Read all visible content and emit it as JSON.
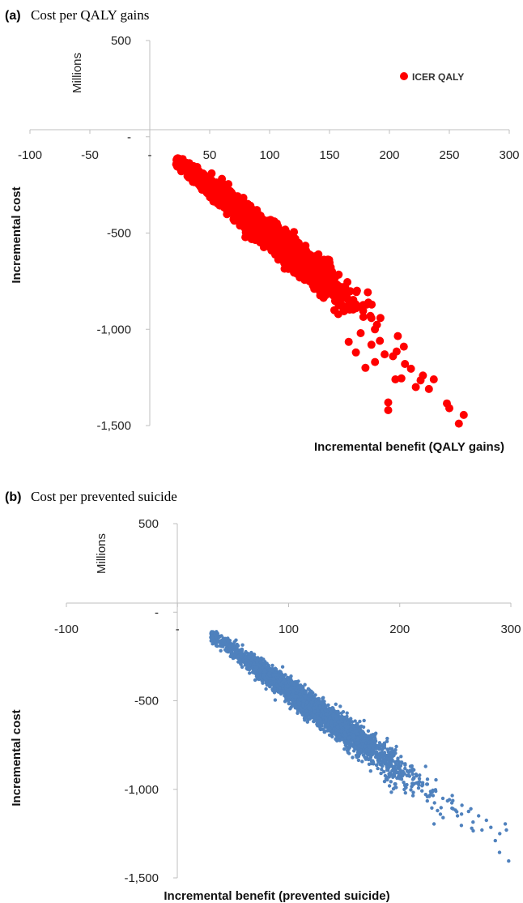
{
  "chart_data": [
    {
      "type": "scatter",
      "panel_letter": "(a)",
      "title": "Cost per QALY gains",
      "xlabel": "Incremental benefit (QALY gains)",
      "ylabel": "Incremental cost",
      "y_unit_label": "Millions",
      "xlim": [
        -100,
        300
      ],
      "ylim": [
        -1500,
        500
      ],
      "x_ticks": [
        -100,
        -50,
        0,
        50,
        100,
        150,
        200,
        250,
        300
      ],
      "x_tick_labels": [
        "-100",
        "-50",
        "-",
        "50",
        "100",
        "150",
        "200",
        "250",
        "300"
      ],
      "y_ticks": [
        500,
        0,
        -500,
        -1000,
        -1500
      ],
      "y_tick_labels": [
        "500",
        "-",
        "-500",
        "-1,000",
        "-1,500"
      ],
      "legend": {
        "label": "ICER QALY",
        "placement": "top-right"
      },
      "grid": false,
      "marker": {
        "shape": "circle",
        "size": "large"
      },
      "series": [
        {
          "name": "ICER QALY",
          "color": "#ff0000",
          "trend": {
            "x_start": 22,
            "y_start": -120,
            "slope": -5.0
          },
          "distribution": {
            "n": 3000,
            "x_mean": 95,
            "x_sd": 30,
            "x_min": 22,
            "x_max": 262,
            "cost_sd": 45
          },
          "outliers": [
            {
              "x": 258,
              "y": -1490
            },
            {
              "x": 262,
              "y": -1445
            },
            {
              "x": 248,
              "y": -1385
            },
            {
              "x": 250,
              "y": -1410
            },
            {
              "x": 233,
              "y": -1310
            },
            {
              "x": 237,
              "y": -1260
            },
            {
              "x": 222,
              "y": -1300
            },
            {
              "x": 226,
              "y": -1265
            },
            {
              "x": 228,
              "y": -1240
            },
            {
              "x": 218,
              "y": -1205
            },
            {
              "x": 213,
              "y": -1180
            },
            {
              "x": 205,
              "y": -1260
            },
            {
              "x": 210,
              "y": -1255
            },
            {
              "x": 199,
              "y": -1380
            },
            {
              "x": 199,
              "y": -1420
            },
            {
              "x": 206,
              "y": -1115
            },
            {
              "x": 203,
              "y": -1140
            },
            {
              "x": 196,
              "y": -1130
            },
            {
              "x": 188,
              "y": -1170
            },
            {
              "x": 180,
              "y": -1200
            },
            {
              "x": 172,
              "y": -1120
            },
            {
              "x": 185,
              "y": -1080
            },
            {
              "x": 192,
              "y": -1060
            },
            {
              "x": 207,
              "y": -1035
            },
            {
              "x": 212,
              "y": -1090
            },
            {
              "x": 166,
              "y": -1065
            },
            {
              "x": 176,
              "y": -1020
            }
          ]
        }
      ]
    },
    {
      "type": "scatter",
      "panel_letter": "(b)",
      "title": "Cost per prevented suicide",
      "xlabel": "Incremental benefit (prevented suicide)",
      "ylabel": "Incremental cost",
      "y_unit_label": "Millions",
      "xlim": [
        -100,
        300
      ],
      "ylim": [
        -1500,
        500
      ],
      "x_ticks": [
        -100,
        0,
        100,
        200,
        300
      ],
      "x_tick_labels": [
        "-100",
        "-",
        "100",
        "200",
        "300"
      ],
      "y_ticks": [
        500,
        0,
        -500,
        -1000,
        -1500
      ],
      "y_tick_labels": [
        "500",
        "-",
        "-500",
        "-1,000",
        "-1,500"
      ],
      "grid": false,
      "marker": {
        "shape": "circle",
        "size": "small"
      },
      "series": [
        {
          "color": "#4f81bd",
          "trend": {
            "x_start": 30,
            "y_start": -120,
            "slope": -4.55
          },
          "distribution": {
            "n": 3000,
            "x_mean": 120,
            "x_sd": 45,
            "x_min": 30,
            "x_max": 298,
            "cost_sd": 50
          },
          "outliers": [
            {
              "x": 298,
              "y": -1405
            },
            {
              "x": 296,
              "y": -1230
            },
            {
              "x": 295,
              "y": -1195
            },
            {
              "x": 290,
              "y": -1250
            },
            {
              "x": 286,
              "y": -1290
            },
            {
              "x": 282,
              "y": -1215
            },
            {
              "x": 278,
              "y": -1175
            },
            {
              "x": 274,
              "y": -1230
            },
            {
              "x": 271,
              "y": -1150
            },
            {
              "x": 266,
              "y": -1185
            },
            {
              "x": 262,
              "y": -1125
            },
            {
              "x": 256,
              "y": -1090
            },
            {
              "x": 252,
              "y": -1150
            },
            {
              "x": 248,
              "y": -1110
            },
            {
              "x": 243,
              "y": -1065
            },
            {
              "x": 239,
              "y": -1160
            },
            {
              "x": 234,
              "y": -1120
            },
            {
              "x": 230,
              "y": -1035
            }
          ]
        }
      ]
    }
  ]
}
